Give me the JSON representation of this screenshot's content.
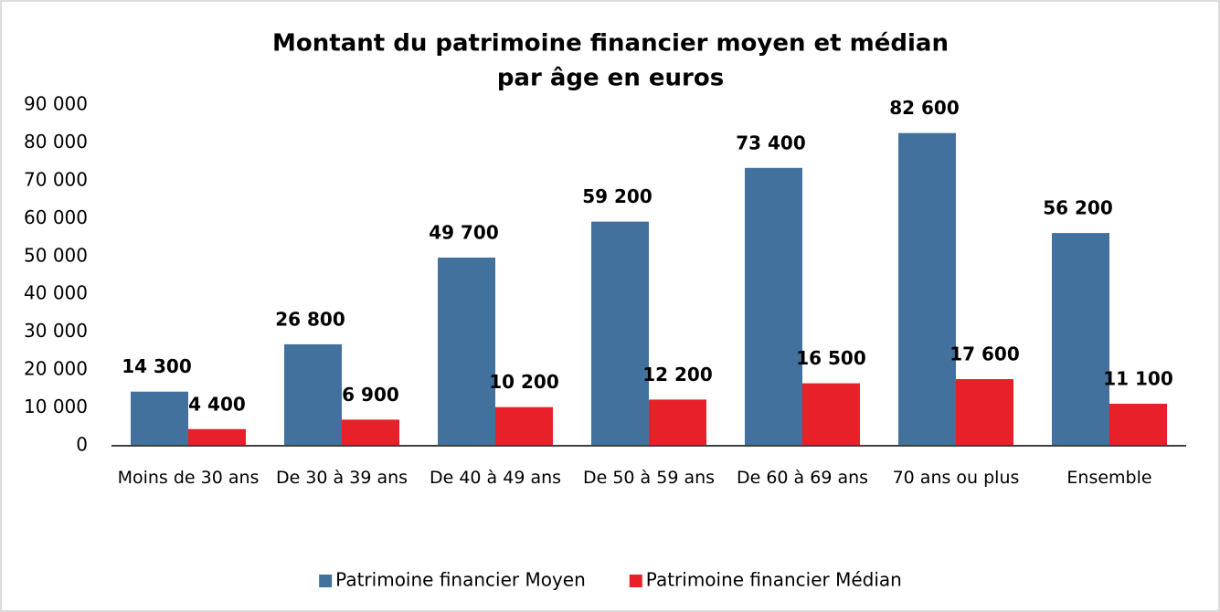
{
  "chart_data": {
    "type": "bar",
    "title": [
      "Montant du patrimoine financier moyen et médian",
      "par âge en euros"
    ],
    "categories": [
      "Moins de 30 ans",
      "De 30 à 39 ans",
      "De 40 à 49 ans",
      "De 50 à 59 ans",
      "De 60 à 69 ans",
      "70 ans ou plus",
      "Ensemble"
    ],
    "series": [
      {
        "name": "Patrimoine financier Moyen",
        "color": "#41719c",
        "values": [
          14300,
          26800,
          49700,
          59200,
          73400,
          82600,
          56200
        ],
        "value_labels": [
          "14 300",
          "26 800",
          "49 700",
          "59 200",
          "73 400",
          "82 600",
          "56 200"
        ]
      },
      {
        "name": "Patrimoine financier Médian",
        "color": "#e8202a",
        "values": [
          4400,
          6900,
          10200,
          12200,
          16500,
          17600,
          11100
        ],
        "value_labels": [
          "4 400",
          "6 900",
          "10 200",
          "12 200",
          "16 500",
          "17 600",
          "11 100"
        ]
      }
    ],
    "ylim": [
      0,
      90000
    ],
    "yticks": [
      0,
      {
        "value": 10000,
        "label": "10 000"
      },
      {
        "value": 20000,
        "label": "20 000"
      },
      {
        "value": 30000,
        "label": "30 000"
      },
      {
        "value": 40000,
        "label": "40 000"
      },
      {
        "value": 50000,
        "label": "50 000"
      },
      {
        "value": 60000,
        "label": "60 000"
      },
      {
        "value": 70000,
        "label": "70 000"
      },
      {
        "value": 80000,
        "label": "80 000"
      },
      {
        "value": 90000,
        "label": "90 000"
      }
    ],
    "grid": false,
    "legend": "bottom"
  }
}
